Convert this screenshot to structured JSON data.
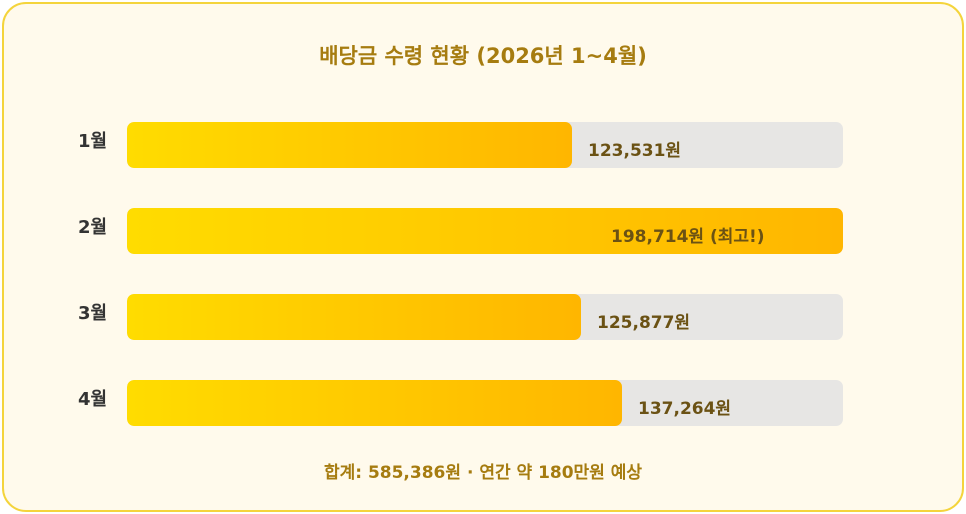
{
  "chart_data": {
    "type": "bar",
    "orientation": "horizontal",
    "title": "배당금 수령 현황 (2026년 1~4월)",
    "categories": [
      "1월",
      "2월",
      "3월",
      "4월"
    ],
    "values": [
      123531,
      198714,
      125877,
      137264
    ],
    "value_labels": [
      "123,531원",
      "198,714원 (최고!)",
      "125,877원",
      "137,264원"
    ],
    "xlim": [
      0,
      198714
    ],
    "grid": false,
    "legend": "none",
    "footer": "합계: 585,386원 · 연간 약 180만원 예상",
    "colors": {
      "bar_start": "#ffdc00",
      "bar_end": "#ffb600",
      "track": "#e7e6e4",
      "title": "#a67c10",
      "value_text": "#6b5214"
    }
  }
}
